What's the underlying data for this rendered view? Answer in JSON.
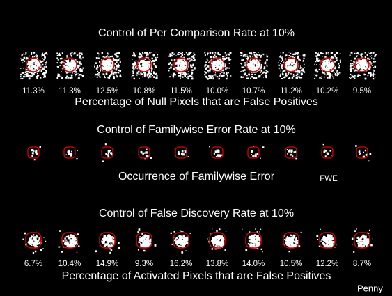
{
  "sections": [
    {
      "title": "Control of Per Comparison Rate at 10%",
      "labels": [
        "11.3%",
        "11.3%",
        "12.5%",
        "10.8%",
        "11.5%",
        "10.0%",
        "10.7%",
        "11.2%",
        "10.2%",
        "9.5%"
      ],
      "caption": "Percentage of Null Pixels that are False Positives"
    },
    {
      "title": "Control of Familywise Error Rate at 10%",
      "caption": "Occurrence of Familywise Error",
      "marker": "FWE"
    },
    {
      "title": "Control of False Discovery Rate at 10%",
      "labels": [
        "6.7%",
        "10.4%",
        "14.9%",
        "9.3%",
        "16.2%",
        "13.8%",
        "14.0%",
        "10.5%",
        "12.2%",
        "8.7%"
      ],
      "caption": "Percentage of Activated Pixels that are False Positives"
    }
  ],
  "credit": "Penny"
}
